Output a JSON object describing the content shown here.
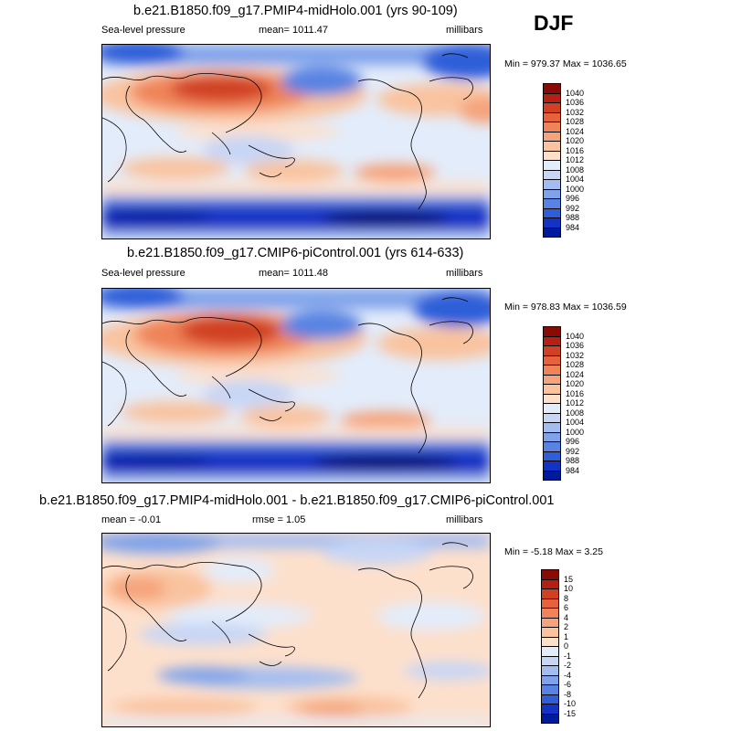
{
  "season": "DJF",
  "colors": {
    "pos": [
      "#fde0cc",
      "#f9c39f",
      "#f5a37a",
      "#ef8359",
      "#e5623d",
      "#d04024",
      "#b62012",
      "#8a0a05"
    ],
    "neg": [
      "#e3ecfa",
      "#c7d6f5",
      "#a4bdf0",
      "#7fa2ea",
      "#5883e2",
      "#2f5fd8",
      "#1233c5",
      "#001a9c",
      "#000a6a"
    ],
    "border": "#000000"
  },
  "panels": [
    {
      "title": "b.e21.B1850.f09_g17.PMIP4-midHolo.001 (yrs 90-109)",
      "left_label": "Sea-level pressure",
      "center_label": "mean= 1011.47",
      "units": "millibars",
      "range_text": "Min = 979.37 Max = 1036.65",
      "legend_labels": [
        "1040",
        "1036",
        "1032",
        "1028",
        "1024",
        "1020",
        "1016",
        "1012",
        "1008",
        "1004",
        "1000",
        "996",
        "992",
        "988",
        "984"
      ]
    },
    {
      "title": "b.e21.B1850.f09_g17.CMIP6-piControl.001 (yrs 614-633)",
      "left_label": "Sea-level pressure",
      "center_label": "mean= 1011.48",
      "units": "millibars",
      "range_text": "Min = 978.83 Max = 1036.59",
      "legend_labels": [
        "1040",
        "1036",
        "1032",
        "1028",
        "1024",
        "1020",
        "1016",
        "1012",
        "1008",
        "1004",
        "1000",
        "996",
        "992",
        "988",
        "984"
      ]
    },
    {
      "title": "b.e21.B1850.f09_g17.PMIP4-midHolo.001 - b.e21.B1850.f09_g17.CMIP6-piControl.001",
      "left_label": "mean =  -0.01",
      "center_label": "rmse =   1.05",
      "units": "millibars",
      "range_text": "Min =  -5.18 Max =   3.25",
      "legend_labels": [
        "15",
        "10",
        "8",
        "6",
        "4",
        "2",
        "1",
        "0",
        "-1",
        "-2",
        "-4",
        "-6",
        "-8",
        "-10",
        "-15"
      ]
    }
  ]
}
